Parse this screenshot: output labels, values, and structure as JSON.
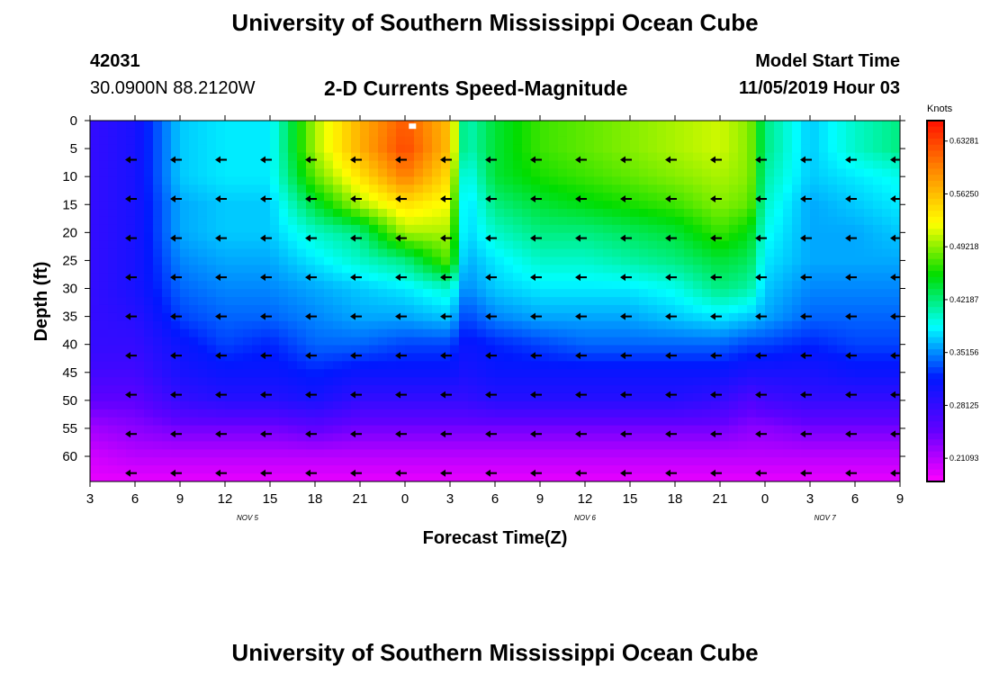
{
  "header": {
    "title": "University of Southern Mississippi Ocean Cube",
    "station_id": "42031",
    "location": "30.0900N 88.2120W",
    "plot_title": "2-D Currents Speed-Magnitude",
    "model_start_label": "Model Start Time",
    "model_start_value": "11/05/2019 Hour 03"
  },
  "footer": {
    "title": "University of Southern Mississippi Ocean Cube"
  },
  "chart_data": {
    "type": "heatmap",
    "xlabel": "Forecast Time(Z)",
    "ylabel": "Depth (ft)",
    "x_tick_labels": [
      "3",
      "6",
      "9",
      "12",
      "15",
      "18",
      "21",
      "0",
      "3",
      "6",
      "9",
      "12",
      "15",
      "18",
      "21",
      "0",
      "3",
      "6",
      "9"
    ],
    "x_hours": [
      0,
      3,
      6,
      9,
      12,
      15,
      18,
      21,
      24,
      27,
      30,
      33,
      36,
      39,
      42,
      45,
      48,
      51,
      54
    ],
    "xlim_hours": [
      0,
      54
    ],
    "date_labels": [
      {
        "text": "NOV 5",
        "hour": 10.5
      },
      {
        "text": "NOV 6",
        "hour": 33
      },
      {
        "text": "NOV 7",
        "hour": 49
      }
    ],
    "y_ticks": [
      0,
      5,
      10,
      15,
      20,
      25,
      30,
      35,
      40,
      45,
      50,
      55,
      60
    ],
    "ylim": [
      0,
      64.5
    ],
    "colorbar": {
      "label": "Knots",
      "ticks": [
        0.63281,
        0.5625,
        0.49218,
        0.42187,
        0.35156,
        0.28125,
        0.21093
      ],
      "tick_labels": [
        "0.63281",
        "0.56250",
        "0.49218",
        "0.42187",
        "0.35156",
        "0.28125",
        "0.21093"
      ],
      "range": [
        0.18,
        0.66
      ],
      "colors": [
        "#ff00ff",
        "#6000ff",
        "#0018ff",
        "#00ffff",
        "#00dd00",
        "#ffff00",
        "#ff8c00",
        "#ff1000"
      ]
    },
    "vector_direction": "west",
    "vector_depths": [
      7,
      14,
      21,
      28,
      35,
      42,
      49,
      56,
      63
    ],
    "vector_hours": [
      3,
      6,
      9,
      12,
      15,
      18,
      21,
      24,
      27,
      30,
      33,
      36,
      39,
      42,
      45,
      48,
      51,
      54
    ],
    "speed_profiles": {
      "depths": [
        0,
        5,
        10,
        15,
        20,
        25,
        30,
        35,
        40,
        45,
        50,
        55,
        60,
        64.5
      ],
      "hours": [
        0,
        3,
        6,
        9,
        12,
        15,
        18,
        21,
        24,
        25,
        27,
        30,
        33,
        36,
        39,
        42,
        44,
        45,
        48,
        51,
        54
      ],
      "speeds": [
        [
          0.28,
          0.28,
          0.28,
          0.28,
          0.28,
          0.28,
          0.28,
          0.28,
          0.28,
          0.27,
          0.25,
          0.22,
          0.2,
          0.19
        ],
        [
          0.3,
          0.3,
          0.3,
          0.3,
          0.3,
          0.3,
          0.3,
          0.29,
          0.28,
          0.27,
          0.25,
          0.23,
          0.21,
          0.19
        ],
        [
          0.37,
          0.37,
          0.37,
          0.36,
          0.36,
          0.35,
          0.34,
          0.33,
          0.31,
          0.3,
          0.28,
          0.24,
          0.21,
          0.19
        ],
        [
          0.38,
          0.38,
          0.38,
          0.37,
          0.37,
          0.36,
          0.35,
          0.34,
          0.33,
          0.31,
          0.29,
          0.24,
          0.21,
          0.19
        ],
        [
          0.38,
          0.38,
          0.38,
          0.37,
          0.37,
          0.36,
          0.35,
          0.34,
          0.32,
          0.31,
          0.29,
          0.24,
          0.21,
          0.19
        ],
        [
          0.5,
          0.5,
          0.48,
          0.44,
          0.4,
          0.38,
          0.36,
          0.35,
          0.34,
          0.32,
          0.3,
          0.25,
          0.21,
          0.19
        ],
        [
          0.57,
          0.57,
          0.54,
          0.5,
          0.42,
          0.4,
          0.37,
          0.36,
          0.34,
          0.31,
          0.28,
          0.24,
          0.21,
          0.19
        ],
        [
          0.62,
          0.63,
          0.6,
          0.54,
          0.5,
          0.42,
          0.38,
          0.36,
          0.33,
          0.31,
          0.28,
          0.24,
          0.21,
          0.19
        ],
        [
          0.56,
          0.56,
          0.54,
          0.52,
          0.5,
          0.48,
          0.4,
          0.37,
          0.33,
          0.31,
          0.28,
          0.24,
          0.21,
          0.19
        ],
        [
          0.4,
          0.4,
          0.38,
          0.37,
          0.37,
          0.36,
          0.35,
          0.33,
          0.31,
          0.3,
          0.28,
          0.24,
          0.21,
          0.19
        ],
        [
          0.44,
          0.44,
          0.44,
          0.42,
          0.4,
          0.38,
          0.37,
          0.35,
          0.32,
          0.31,
          0.29,
          0.24,
          0.21,
          0.19
        ],
        [
          0.47,
          0.47,
          0.46,
          0.44,
          0.42,
          0.4,
          0.38,
          0.36,
          0.33,
          0.31,
          0.29,
          0.24,
          0.21,
          0.19
        ],
        [
          0.48,
          0.48,
          0.47,
          0.45,
          0.42,
          0.4,
          0.38,
          0.36,
          0.34,
          0.31,
          0.29,
          0.24,
          0.21,
          0.19
        ],
        [
          0.49,
          0.49,
          0.48,
          0.46,
          0.43,
          0.41,
          0.38,
          0.36,
          0.34,
          0.31,
          0.29,
          0.24,
          0.21,
          0.19
        ],
        [
          0.5,
          0.5,
          0.49,
          0.47,
          0.44,
          0.42,
          0.39,
          0.37,
          0.34,
          0.31,
          0.29,
          0.24,
          0.21,
          0.19
        ],
        [
          0.51,
          0.51,
          0.5,
          0.49,
          0.47,
          0.44,
          0.42,
          0.38,
          0.34,
          0.31,
          0.28,
          0.24,
          0.21,
          0.19
        ],
        [
          0.49,
          0.49,
          0.49,
          0.48,
          0.45,
          0.43,
          0.41,
          0.37,
          0.33,
          0.3,
          0.26,
          0.23,
          0.21,
          0.19
        ],
        [
          0.42,
          0.42,
          0.41,
          0.4,
          0.39,
          0.38,
          0.37,
          0.36,
          0.33,
          0.3,
          0.27,
          0.23,
          0.21,
          0.19
        ],
        [
          0.37,
          0.37,
          0.37,
          0.36,
          0.36,
          0.36,
          0.35,
          0.34,
          0.32,
          0.3,
          0.28,
          0.24,
          0.21,
          0.19
        ],
        [
          0.4,
          0.4,
          0.38,
          0.37,
          0.36,
          0.36,
          0.35,
          0.34,
          0.33,
          0.31,
          0.28,
          0.24,
          0.21,
          0.19
        ],
        [
          0.42,
          0.42,
          0.39,
          0.38,
          0.37,
          0.36,
          0.35,
          0.34,
          0.33,
          0.31,
          0.28,
          0.24,
          0.21,
          0.19
        ]
      ]
    },
    "max_marker": {
      "hour": 21.5,
      "depth": 1
    }
  }
}
